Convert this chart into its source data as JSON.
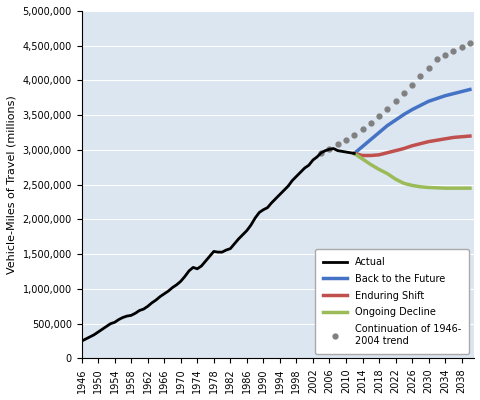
{
  "title": "",
  "ylabel": "Vehicle-Miles of Travel (millions)",
  "xlabel": "",
  "ylim": [
    0,
    5000000
  ],
  "yticks": [
    0,
    500000,
    1000000,
    1500000,
    2000000,
    2500000,
    3000000,
    3500000,
    4000000,
    4500000,
    5000000
  ],
  "background_color": "#dce6f1",
  "actual_years": [
    1946,
    1947,
    1948,
    1949,
    1950,
    1951,
    1952,
    1953,
    1954,
    1955,
    1956,
    1957,
    1958,
    1959,
    1960,
    1961,
    1962,
    1963,
    1964,
    1965,
    1966,
    1967,
    1968,
    1969,
    1970,
    1971,
    1972,
    1973,
    1974,
    1975,
    1976,
    1977,
    1978,
    1979,
    1980,
    1981,
    1982,
    1983,
    1984,
    1985,
    1986,
    1987,
    1988,
    1989,
    1990,
    1991,
    1992,
    1993,
    1994,
    1995,
    1996,
    1997,
    1998,
    1999,
    2000,
    2001,
    2002,
    2003,
    2004,
    2005,
    2006,
    2007,
    2008,
    2009,
    2010,
    2011,
    2012
  ],
  "actual_values": [
    250000,
    280000,
    310000,
    340000,
    380000,
    420000,
    460000,
    500000,
    520000,
    560000,
    590000,
    610000,
    620000,
    650000,
    690000,
    710000,
    750000,
    800000,
    840000,
    890000,
    930000,
    970000,
    1020000,
    1060000,
    1110000,
    1180000,
    1260000,
    1310000,
    1290000,
    1330000,
    1400000,
    1470000,
    1540000,
    1530000,
    1530000,
    1560000,
    1580000,
    1650000,
    1720000,
    1780000,
    1840000,
    1920000,
    2020000,
    2100000,
    2140000,
    2170000,
    2240000,
    2300000,
    2360000,
    2420000,
    2480000,
    2560000,
    2620000,
    2680000,
    2740000,
    2780000,
    2855000,
    2900000,
    2960000,
    2990000,
    3010000,
    3020000,
    2990000,
    2980000,
    2970000,
    2960000,
    2950000
  ],
  "projection_years": [
    2012,
    2014,
    2016,
    2018,
    2020,
    2022,
    2024,
    2026,
    2028,
    2030,
    2032,
    2034,
    2036,
    2038,
    2040
  ],
  "back_to_future": [
    2950000,
    3050000,
    3150000,
    3250000,
    3350000,
    3430000,
    3510000,
    3580000,
    3640000,
    3700000,
    3740000,
    3780000,
    3810000,
    3840000,
    3870000
  ],
  "enduring_shift": [
    2950000,
    2920000,
    2920000,
    2930000,
    2960000,
    2990000,
    3020000,
    3060000,
    3090000,
    3120000,
    3140000,
    3160000,
    3180000,
    3190000,
    3200000
  ],
  "ongoing_decline": [
    2950000,
    2870000,
    2790000,
    2720000,
    2660000,
    2580000,
    2520000,
    2490000,
    2470000,
    2460000,
    2455000,
    2450000,
    2450000,
    2450000,
    2450000
  ],
  "trend_years": [
    2004,
    2006,
    2008,
    2010,
    2012,
    2014,
    2016,
    2018,
    2020,
    2022,
    2024,
    2026,
    2028,
    2030,
    2032,
    2034,
    2036,
    2038,
    2040
  ],
  "trend_values": [
    2960000,
    3020000,
    3080000,
    3150000,
    3220000,
    3300000,
    3390000,
    3490000,
    3590000,
    3700000,
    3820000,
    3940000,
    4060000,
    4180000,
    4310000,
    4360000,
    4420000,
    4480000,
    4540000
  ],
  "xtick_years": [
    1946,
    1950,
    1954,
    1958,
    1962,
    1966,
    1970,
    1974,
    1978,
    1982,
    1986,
    1990,
    1994,
    1998,
    2002,
    2006,
    2010,
    2014,
    2018,
    2022,
    2026,
    2030,
    2034,
    2038
  ],
  "colors": {
    "back_to_future": "#4472c4",
    "enduring_shift": "#c0504d",
    "ongoing_decline": "#9bbb59",
    "actual": "#000000",
    "trend": "#808080"
  },
  "legend": {
    "back_to_future": "Back to the Future",
    "enduring_shift": "Enduring Shift",
    "ongoing_decline": "Ongoing Decline",
    "actual": "Actual",
    "trend": "Continuation of 1946-\n2004 trend"
  }
}
